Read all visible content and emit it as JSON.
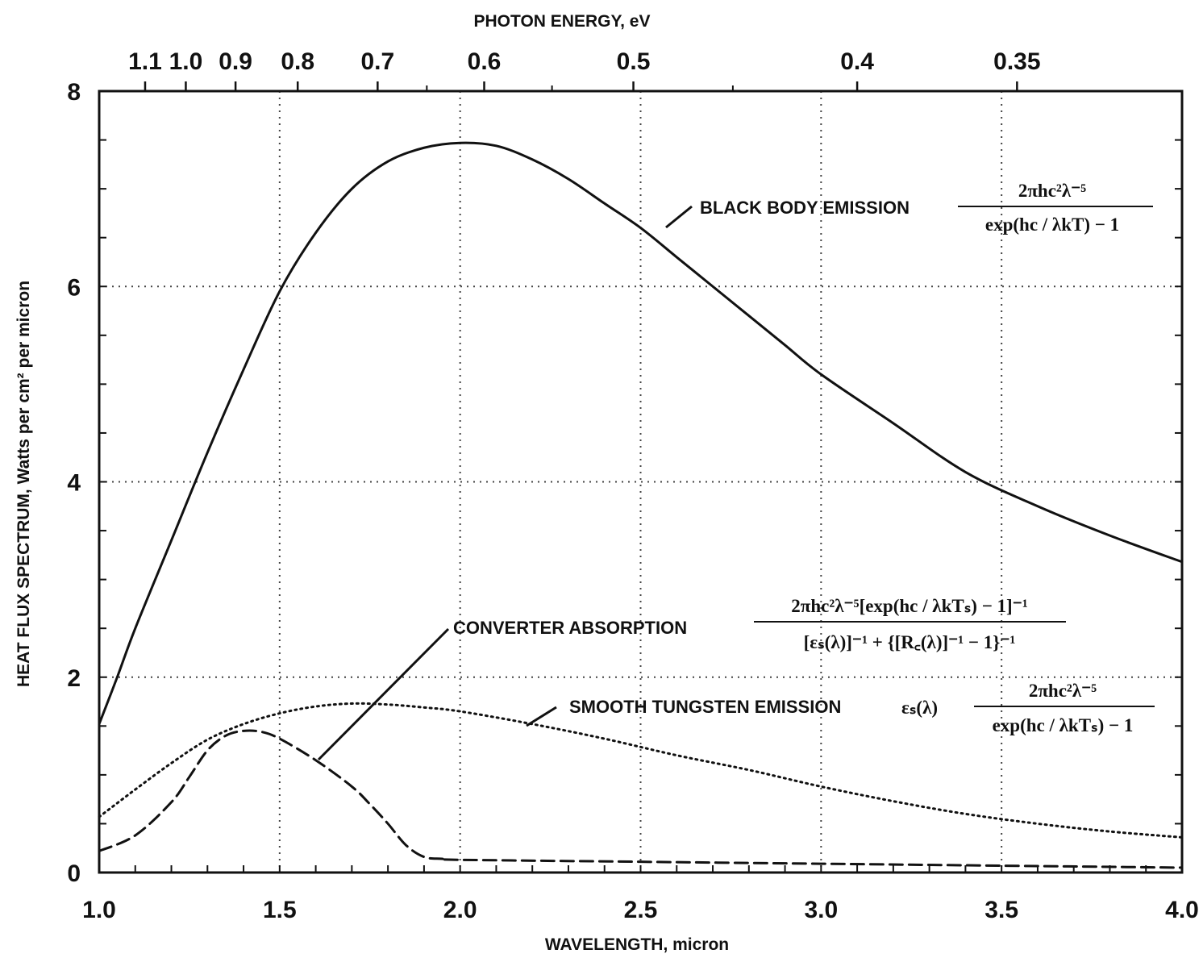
{
  "chart_data": {
    "type": "line",
    "xlabel": "WAVELENGTH, micron",
    "ylabel": "HEAT FLUX SPECTRUM, Watts per cm² per micron",
    "top_axis_label": "PHOTON ENERGY, eV",
    "xlim": [
      1.0,
      4.0
    ],
    "ylim": [
      0,
      8
    ],
    "x_ticks": [
      "1.0",
      "1.5",
      "2.0",
      "2.5",
      "3.0",
      "3.5",
      "4.0"
    ],
    "y_ticks": [
      "0",
      "2",
      "4",
      "6",
      "8"
    ],
    "top_ticks": [
      {
        "energy": 1.1,
        "label": "1.1"
      },
      {
        "energy": 1.0,
        "label": "1.0"
      },
      {
        "energy": 0.9,
        "label": "0.9"
      },
      {
        "energy": 0.8,
        "label": "0.8"
      },
      {
        "energy": 0.7,
        "label": "0.7"
      },
      {
        "energy": 0.6,
        "label": "0.6"
      },
      {
        "energy": 0.5,
        "label": "0.5"
      },
      {
        "energy": 0.4,
        "label": "0.4"
      },
      {
        "energy": 0.35,
        "label": "0.35"
      }
    ],
    "grid": true,
    "series": [
      {
        "name": "BLACK BODY EMISSION",
        "style": "solid",
        "formula_num": "2πhc²λ⁻⁵",
        "formula_den": "exp(hc / λkT) − 1",
        "x": [
          1.0,
          1.05,
          1.1,
          1.2,
          1.3,
          1.4,
          1.5,
          1.6,
          1.7,
          1.8,
          1.9,
          2.0,
          2.1,
          2.2,
          2.3,
          2.4,
          2.5,
          2.6,
          2.7,
          2.8,
          2.9,
          3.0,
          3.2,
          3.4,
          3.6,
          3.8,
          4.0
        ],
        "y": [
          1.52,
          2.0,
          2.5,
          3.4,
          4.3,
          5.15,
          5.95,
          6.55,
          7.0,
          7.28,
          7.42,
          7.47,
          7.44,
          7.3,
          7.1,
          6.85,
          6.6,
          6.3,
          6.0,
          5.7,
          5.4,
          5.1,
          4.6,
          4.1,
          3.75,
          3.45,
          3.18
        ]
      },
      {
        "name": "SMOOTH TUNGSTEN EMISSION",
        "style": "dotted",
        "formula_prefix": "εₛ(λ)",
        "formula_num": "2πhc²λ⁻⁵",
        "formula_den": "exp(hc / λkTₛ) − 1",
        "x": [
          1.0,
          1.1,
          1.2,
          1.3,
          1.4,
          1.5,
          1.6,
          1.7,
          1.8,
          1.9,
          2.0,
          2.2,
          2.4,
          2.6,
          2.8,
          3.0,
          3.2,
          3.4,
          3.6,
          3.8,
          4.0
        ],
        "y": [
          0.57,
          0.85,
          1.12,
          1.36,
          1.52,
          1.63,
          1.7,
          1.73,
          1.72,
          1.69,
          1.65,
          1.52,
          1.37,
          1.2,
          1.05,
          0.88,
          0.73,
          0.6,
          0.5,
          0.42,
          0.36
        ]
      },
      {
        "name": "CONVERTER ABSORPTION",
        "style": "dashed",
        "formula_num": "2πhc²λ⁻⁵[exp(hc / λkTₛ) − 1]⁻¹",
        "formula_den": "[εₛ(λ)]⁻¹ + {[R꜀(λ)]⁻¹ − 1}⁻¹",
        "x": [
          1.0,
          1.1,
          1.2,
          1.25,
          1.3,
          1.35,
          1.4,
          1.45,
          1.5,
          1.6,
          1.7,
          1.75,
          1.8,
          1.85,
          1.9,
          1.95,
          2.0,
          2.5,
          3.0,
          3.5,
          4.0
        ],
        "y": [
          0.22,
          0.38,
          0.72,
          0.98,
          1.25,
          1.4,
          1.45,
          1.44,
          1.37,
          1.15,
          0.88,
          0.7,
          0.5,
          0.28,
          0.16,
          0.14,
          0.13,
          0.11,
          0.09,
          0.07,
          0.05
        ]
      }
    ]
  }
}
